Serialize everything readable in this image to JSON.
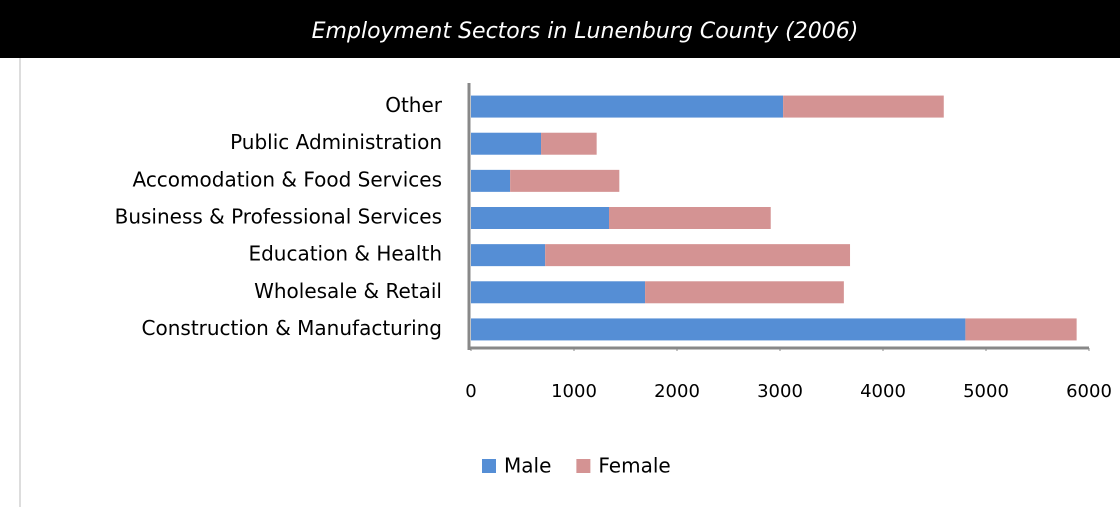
{
  "chart_data": {
    "type": "bar",
    "orientation": "horizontal",
    "stacked": true,
    "title": "Employment Sectors in Lunenburg County (2006)",
    "categories": [
      "Construction & Manufacturing",
      "Wholesale & Retail",
      "Education & Health",
      "Business & Professional Services",
      "Accomodation & Food Services",
      "Public Administration",
      "Other"
    ],
    "series": [
      {
        "name": "Male",
        "color": "#558ed5",
        "values": [
          4800,
          1690,
          720,
          1340,
          380,
          680,
          3030
        ]
      },
      {
        "name": "Female",
        "color": "#d49393",
        "values": [
          1080,
          1930,
          2960,
          1570,
          1060,
          540,
          1560
        ]
      }
    ],
    "xlim": [
      0,
      6000
    ],
    "xticks": [
      0,
      1000,
      2000,
      3000,
      4000,
      5000,
      6000
    ],
    "grid": false,
    "legend": "bottom"
  }
}
